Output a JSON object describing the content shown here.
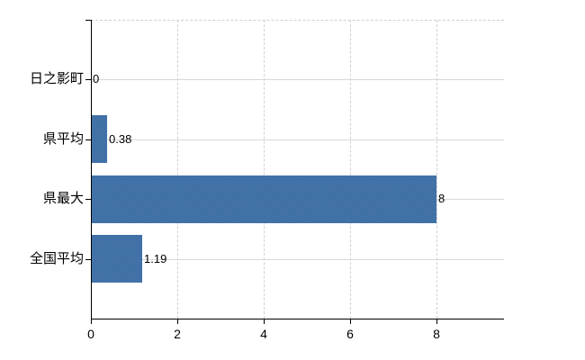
{
  "chart_data": {
    "type": "bar",
    "orientation": "horizontal",
    "title": "",
    "xlabel": "",
    "ylabel": "",
    "categories": [
      "日之影町",
      "県平均",
      "県最大",
      "全国平均"
    ],
    "values": [
      0,
      0.38,
      8,
      1.19
    ],
    "value_labels": [
      "0",
      "0.38",
      "8",
      "1.19"
    ],
    "x_tick_labels": [
      "0",
      "2",
      "4",
      "6",
      "8"
    ],
    "x_tick_values": [
      0,
      2,
      4,
      6,
      8
    ],
    "xlim": [
      0,
      9.56
    ],
    "grid": true,
    "legend": false,
    "colors": {
      "bar_fill": "#3f72a8",
      "bar_dither_dark": "#35689e",
      "bar_dither_light": "#4d7ab0",
      "h_gridline": "#d7dad2",
      "v_gridline": "#d0d0d0",
      "top_border": "#d0d0d0",
      "axis": "#000000",
      "text": "#000000",
      "background": "#ffffff"
    }
  }
}
